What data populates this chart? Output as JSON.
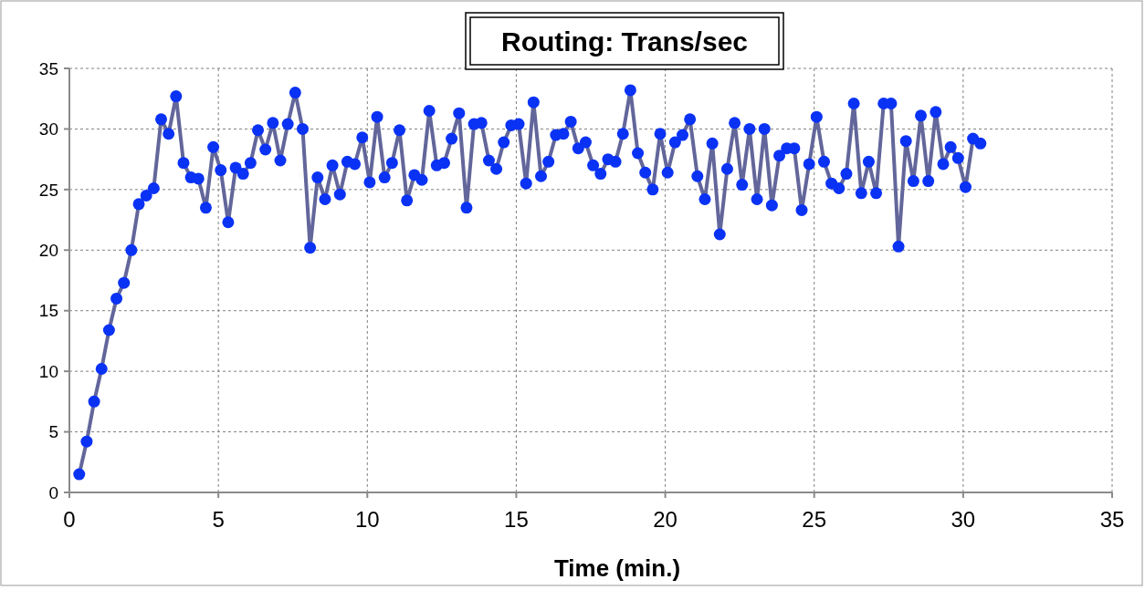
{
  "chart_data": {
    "type": "line",
    "title": "Routing: Trans/sec",
    "xlabel": "Time (min.)",
    "x": [
      0.33,
      0.58,
      0.83,
      1.08,
      1.33,
      1.58,
      1.83,
      2.08,
      2.33,
      2.58,
      2.83,
      3.08,
      3.33,
      3.58,
      3.83,
      4.08,
      4.33,
      4.58,
      4.83,
      5.08,
      5.33,
      5.58,
      5.83,
      6.08,
      6.33,
      6.58,
      6.83,
      7.08,
      7.33,
      7.58,
      7.83,
      8.08,
      8.33,
      8.58,
      8.83,
      9.08,
      9.33,
      9.58,
      9.83,
      10.08,
      10.33,
      10.58,
      10.83,
      11.08,
      11.33,
      11.58,
      11.83,
      12.08,
      12.33,
      12.58,
      12.83,
      13.08,
      13.33,
      13.58,
      13.83,
      14.08,
      14.33,
      14.58,
      14.83,
      15.08,
      15.33,
      15.58,
      15.83,
      16.08,
      16.33,
      16.58,
      16.83,
      17.08,
      17.33,
      17.58,
      17.83,
      18.08,
      18.33,
      18.58,
      18.83,
      19.08,
      19.33,
      19.58,
      19.83,
      20.08,
      20.33,
      20.58,
      20.83,
      21.08,
      21.33,
      21.58,
      21.83,
      22.08,
      22.33,
      22.58,
      22.83,
      23.08,
      23.33,
      23.58,
      23.83,
      24.08,
      24.33,
      24.58,
      24.83,
      25.08,
      25.33,
      25.58,
      25.83,
      26.08,
      26.33,
      26.58,
      26.83,
      27.08,
      27.33,
      27.58,
      27.83,
      28.08,
      28.33,
      28.58,
      28.83,
      29.08,
      29.33,
      29.58,
      29.83,
      30.08,
      30.33,
      30.58
    ],
    "series": [
      {
        "color": "#0a32f5",
        "values": [
          1.5,
          4.2,
          7.5,
          10.2,
          13.4,
          16.0,
          17.3,
          20.0,
          23.8,
          24.5,
          25.1,
          30.8,
          29.6,
          32.7,
          27.2,
          26.0,
          25.9,
          23.5,
          28.5,
          26.6,
          22.3,
          26.8,
          26.3,
          27.2,
          29.9,
          28.3,
          30.5,
          27.4,
          30.4,
          33.0,
          30.0,
          20.2,
          26.0,
          24.2,
          27.0,
          24.6,
          27.3,
          27.1,
          29.3,
          25.6,
          31.0,
          26.0,
          27.2,
          29.9,
          24.1,
          26.2,
          25.8,
          31.5,
          27.0,
          27.2,
          29.2,
          31.3,
          23.5,
          30.4,
          30.5,
          27.4,
          26.7,
          28.9,
          30.3,
          30.4,
          25.5,
          32.2,
          26.1,
          27.3,
          29.5,
          29.6,
          30.6,
          28.4,
          28.9,
          27.0,
          26.3,
          27.5,
          27.3,
          29.6,
          33.2,
          28.0,
          26.4,
          25.0,
          29.6,
          26.4,
          28.9,
          29.5,
          30.8,
          26.1,
          24.2,
          28.8,
          21.3,
          26.7,
          30.5,
          25.4,
          30.0,
          24.2,
          30.0,
          23.7,
          27.8,
          28.4,
          28.4,
          23.3,
          27.1,
          31.0,
          27.3,
          25.5,
          25.1,
          26.3,
          32.1,
          24.7,
          27.3,
          24.7,
          32.1,
          32.1,
          20.3,
          29.0,
          25.7,
          31.1,
          25.7,
          31.4,
          27.1,
          28.5,
          27.6,
          25.2,
          29.2,
          28.8
        ]
      }
    ],
    "xlim": [
      0,
      35
    ],
    "xticks": [
      0,
      5,
      10,
      15,
      20,
      25,
      30,
      35
    ],
    "ylim": [
      0,
      35
    ],
    "yticks": [
      0,
      5,
      10,
      15,
      20,
      25,
      30,
      35
    ],
    "grid": true,
    "marker": "circle",
    "line_style": "solid"
  }
}
